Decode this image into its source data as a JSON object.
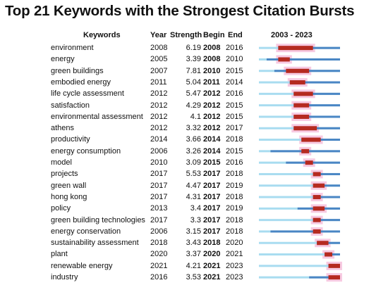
{
  "title": "Top 21 Keywords with the Strongest Citation Bursts",
  "headers": {
    "keywords": "Keywords",
    "year": "Year",
    "strength": "Strength",
    "begin": "Begin",
    "end": "End",
    "range": "2003 - 2023"
  },
  "colors": {
    "baseline": "#a8dcf0",
    "active": "#4a86c4",
    "burst": "#b52a20",
    "highlight": "#f4b8d8"
  },
  "chart_data": {
    "type": "table",
    "timeline_start": 2003,
    "timeline_end": 2023,
    "rows": [
      {
        "keyword": "environment",
        "year": "2008",
        "strength": "6.19",
        "begin": "2008",
        "end": "2016"
      },
      {
        "keyword": "energy",
        "year": "2005",
        "strength": "3.39",
        "begin": "2008",
        "end": "2010"
      },
      {
        "keyword": "green buildings",
        "year": "2007",
        "strength": "7.81",
        "begin": "2010",
        "end": "2015"
      },
      {
        "keyword": "embodied energy",
        "year": "2011",
        "strength": "5.04",
        "begin": "2011",
        "end": "2014"
      },
      {
        "keyword": "life cycle assessment",
        "year": "2012",
        "strength": "5.47",
        "begin": "2012",
        "end": "2016"
      },
      {
        "keyword": "satisfaction",
        "year": "2012",
        "strength": "4.29",
        "begin": "2012",
        "end": "2015"
      },
      {
        "keyword": "environmental assessment",
        "year": "2012",
        "strength": "4.1",
        "begin": "2012",
        "end": "2015"
      },
      {
        "keyword": "athens",
        "year": "2012",
        "strength": "3.32",
        "begin": "2012",
        "end": "2017"
      },
      {
        "keyword": "productivity",
        "year": "2014",
        "strength": "3.66",
        "begin": "2014",
        "end": "2018"
      },
      {
        "keyword": "energy consumption",
        "year": "2006",
        "strength": "3.26",
        "begin": "2014",
        "end": "2015"
      },
      {
        "keyword": "model",
        "year": "2010",
        "strength": "3.09",
        "begin": "2015",
        "end": "2016"
      },
      {
        "keyword": "projects",
        "year": "2017",
        "strength": "5.53",
        "begin": "2017",
        "end": "2018"
      },
      {
        "keyword": "green wall",
        "year": "2017",
        "strength": "4.47",
        "begin": "2017",
        "end": "2019"
      },
      {
        "keyword": "hong kong",
        "year": "2017",
        "strength": "4.31",
        "begin": "2017",
        "end": "2018"
      },
      {
        "keyword": "policy",
        "year": "2013",
        "strength": "3.4",
        "begin": "2017",
        "end": "2019"
      },
      {
        "keyword": "green building technologies",
        "year": "2017",
        "strength": "3.3",
        "begin": "2017",
        "end": "2018"
      },
      {
        "keyword": "energy conservation",
        "year": "2006",
        "strength": "3.15",
        "begin": "2017",
        "end": "2018"
      },
      {
        "keyword": "sustainability assessment",
        "year": "2018",
        "strength": "3.43",
        "begin": "2018",
        "end": "2020"
      },
      {
        "keyword": "plant",
        "year": "2020",
        "strength": "3.37",
        "begin": "2020",
        "end": "2021"
      },
      {
        "keyword": "renewable energy",
        "year": "2021",
        "strength": "4.21",
        "begin": "2021",
        "end": "2023"
      },
      {
        "keyword": "industry",
        "year": "2016",
        "strength": "3.53",
        "begin": "2021",
        "end": "2023"
      }
    ]
  }
}
